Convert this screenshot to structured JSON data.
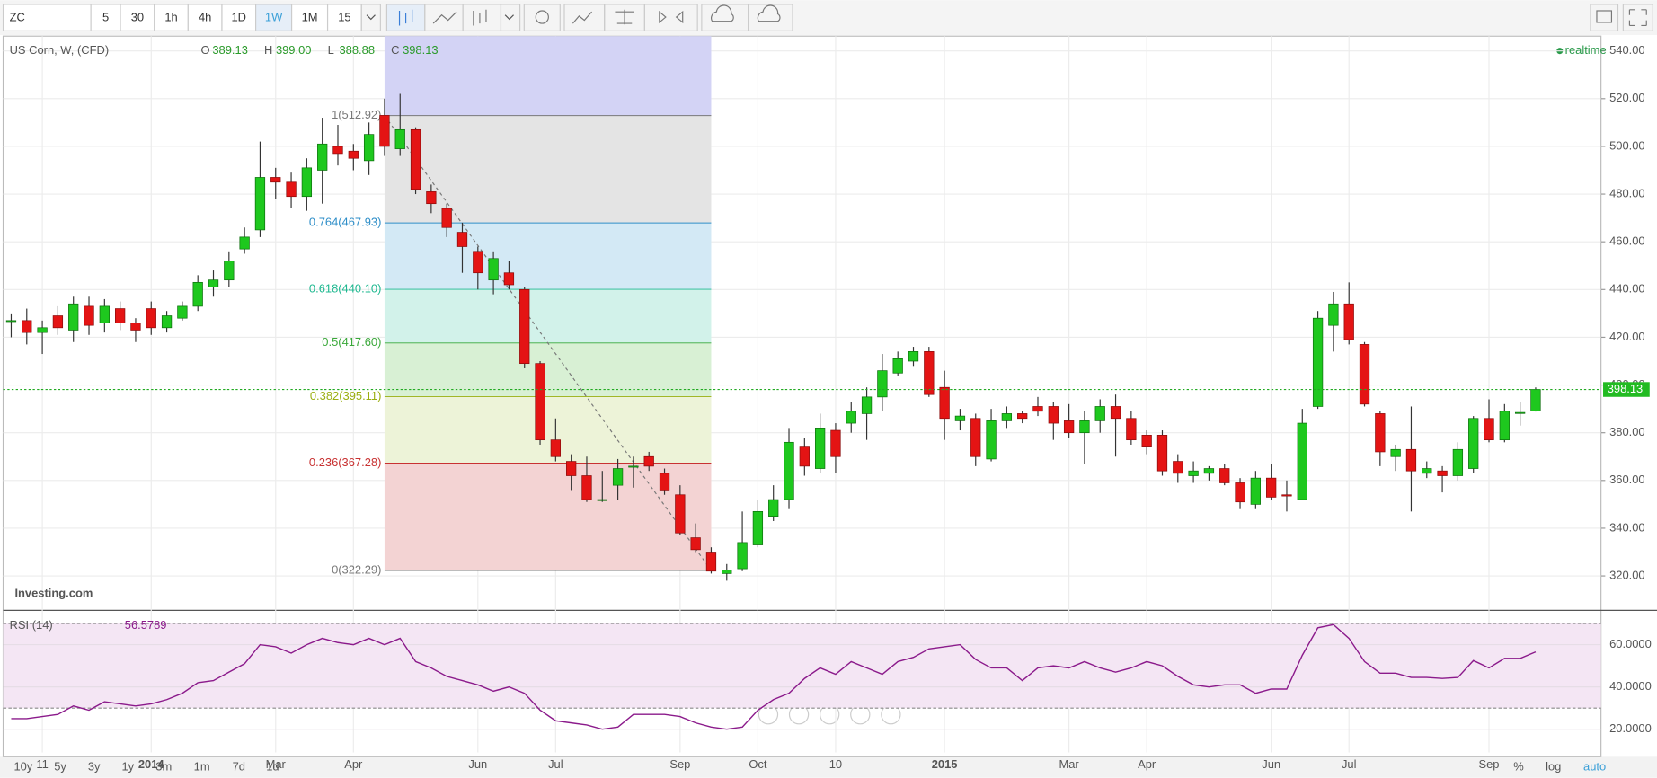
{
  "toolbar": {
    "symbol": "ZC",
    "intervals": [
      "5",
      "30",
      "1h",
      "4h",
      "1D",
      "1W",
      "1M",
      "15"
    ],
    "active": "1W"
  },
  "header": {
    "ohlc": [
      {
        "key": "O",
        "value": "389.13"
      },
      {
        "key": "H",
        "value": "399.00"
      },
      {
        "key": "L",
        "value": "388.88"
      },
      {
        "key": "C",
        "value": "398.13"
      }
    ],
    "status": "realtime",
    "watermark": "Investing.com"
  },
  "chart_data": [
    {
      "type": "candlestick",
      "title": "US Corn, W, (CFD)",
      "categories": [
        null,
        null,
        "11",
        null,
        null,
        null,
        null,
        null,
        null,
        "2014",
        null,
        null,
        null,
        null,
        null,
        null,
        null,
        "Mar",
        null,
        null,
        null,
        null,
        "Apr",
        null,
        null,
        null,
        null,
        null,
        null,
        null,
        "Jun",
        null,
        null,
        null,
        null,
        "Jul",
        null,
        null,
        null,
        null,
        null,
        null,
        null,
        "Sep",
        null,
        null,
        null,
        null,
        "Oct",
        null,
        null,
        null,
        null,
        "10",
        null,
        null,
        null,
        null,
        null,
        null,
        "2015",
        null,
        null,
        null,
        null,
        null,
        null,
        null,
        "Mar",
        null,
        null,
        null,
        null,
        "Apr",
        null,
        null,
        null,
        null,
        null,
        null,
        null,
        "Jun",
        null,
        null,
        null,
        null,
        "Jul",
        null,
        null,
        null,
        null,
        null,
        null,
        null,
        null,
        "Sep",
        null,
        null,
        null
      ],
      "open": [
        427,
        427,
        422,
        429,
        423,
        433,
        426,
        432,
        426,
        432,
        424,
        428,
        433,
        441,
        444,
        457,
        465,
        487,
        485,
        479,
        490,
        500,
        498,
        494,
        513,
        499,
        507,
        481,
        474,
        464,
        456,
        444,
        447,
        440,
        409,
        377,
        368,
        362,
        352,
        358,
        366,
        370,
        363,
        354,
        336,
        330,
        321,
        323,
        333,
        345,
        352,
        374,
        365,
        381,
        384,
        388,
        395,
        405,
        410,
        414,
        399,
        385,
        386,
        369,
        385,
        388,
        391,
        391,
        385,
        380,
        385,
        391,
        386,
        379,
        379,
        368,
        362,
        363,
        365,
        359,
        350,
        361,
        354,
        352,
        391,
        425,
        434,
        417,
        388,
        370,
        373,
        363,
        364,
        362,
        365,
        386,
        377,
        388.5,
        389.13
      ],
      "high": [
        430,
        432,
        427,
        433,
        437,
        437,
        436,
        435,
        428,
        435,
        431,
        435,
        446,
        448,
        456,
        466,
        502,
        491,
        489,
        495,
        512,
        509,
        501,
        510,
        520,
        522,
        508,
        484,
        476,
        468,
        458,
        456,
        452,
        441,
        410,
        386,
        371,
        370,
        364,
        369,
        370,
        372,
        365,
        358,
        342,
        332,
        325,
        347,
        352,
        358,
        382,
        378,
        388,
        384,
        393,
        399,
        413,
        414,
        416,
        416,
        406,
        390,
        388,
        390,
        391,
        389,
        395,
        393,
        392,
        389,
        394,
        396,
        389,
        381,
        381,
        371,
        368,
        366,
        367,
        361,
        364,
        367,
        360,
        390,
        431,
        439,
        443,
        418,
        389,
        375,
        391,
        368,
        366,
        376,
        387,
        394,
        392,
        393,
        399
      ],
      "low": [
        420,
        417,
        413,
        421,
        418,
        421,
        422,
        423,
        418,
        421,
        422,
        427,
        431,
        437,
        441,
        455,
        462,
        478,
        474,
        473,
        476,
        492,
        490,
        488,
        496,
        496,
        480,
        472,
        462,
        447,
        440,
        438,
        440,
        407,
        375,
        368,
        356,
        351,
        351,
        352,
        357,
        364,
        354,
        337,
        330,
        321,
        318,
        322,
        332,
        343,
        348,
        362,
        363,
        363,
        380,
        377,
        389,
        404,
        408,
        395,
        377,
        381,
        366,
        368,
        382,
        384,
        387,
        377,
        378,
        367,
        380,
        370,
        375,
        371,
        362,
        359,
        359,
        360,
        358,
        348,
        348,
        352,
        347,
        352,
        390,
        414,
        417,
        391,
        366,
        364,
        347,
        361,
        355,
        360,
        363,
        376,
        376,
        383,
        388.88
      ],
      "close": [
        427,
        422,
        424,
        424,
        434,
        425,
        433,
        426,
        423,
        424,
        429,
        433,
        443,
        444,
        452,
        462,
        487,
        485,
        479,
        491,
        501,
        497,
        495,
        505,
        500,
        507,
        482,
        476,
        466,
        458,
        447,
        453,
        442,
        409,
        377,
        370,
        362,
        352,
        352,
        365,
        366,
        366,
        356,
        338,
        331,
        322,
        322.5,
        334,
        347,
        352,
        376,
        366,
        382,
        370,
        389,
        395,
        406,
        411,
        414,
        396,
        386,
        387,
        370,
        385,
        388,
        386,
        389,
        384,
        380,
        385,
        391,
        386,
        377,
        374,
        364,
        363,
        364,
        365,
        359,
        351,
        361,
        353,
        353.5,
        384,
        428,
        434,
        419,
        392,
        372,
        373,
        364,
        365,
        362,
        373,
        386,
        377,
        389,
        388.5,
        398.13
      ],
      "up_color": "#1ec81e",
      "down_color": "#e41414",
      "ylim": [
        305.8,
        546.2
      ],
      "yticks": [
        {
          "value": 320,
          "label": "320.00"
        },
        {
          "value": 340,
          "label": "340.00"
        },
        {
          "value": 360,
          "label": "360.00"
        },
        {
          "value": 380,
          "label": "380.00"
        },
        {
          "value": 400,
          "label": "400.00"
        },
        {
          "value": 420,
          "label": "420.00"
        },
        {
          "value": 440,
          "label": "440.00"
        },
        {
          "value": 460,
          "label": "460.00"
        },
        {
          "value": 480,
          "label": "480.00"
        },
        {
          "value": 500,
          "label": "500.00"
        },
        {
          "value": 520,
          "label": "520.00"
        },
        {
          "value": 540,
          "label": "540.00"
        }
      ],
      "grid": true,
      "fibonacci": {
        "top_fill": "#d3d3f5",
        "levels": [
          {
            "label": "1(512.92)",
            "value": 512.92,
            "color": "#787878",
            "fill": "#e4e4e4"
          },
          {
            "label": "0.764(467.93)",
            "value": 467.93,
            "color": "#2e8ec8",
            "fill": "#d3e9f5"
          },
          {
            "label": "0.618(440.10)",
            "value": 440.1,
            "color": "#1fb890",
            "fill": "#d2f2ea"
          },
          {
            "label": "0.5(417.60)",
            "value": 417.6,
            "color": "#3aa83a",
            "fill": "#d8f0d4"
          },
          {
            "label": "0.382(395.11)",
            "value": 395.11,
            "color": "#9aae10",
            "fill": "#edf3d8"
          },
          {
            "label": "0.236(367.28)",
            "value": 367.28,
            "color": "#c83232",
            "fill": "#f3d3d3"
          },
          {
            "label": "0(322.29)",
            "value": 322.29,
            "color": "#787878",
            "fill": null
          }
        ]
      }
    },
    {
      "type": "line",
      "title": "RSI (14)",
      "color": "#8b1a8b",
      "fill": "#f4e6f4",
      "values": [
        25,
        25,
        26,
        27,
        31,
        29,
        33,
        32,
        31,
        32,
        34,
        37,
        42,
        43,
        47,
        51,
        60,
        59,
        56,
        60,
        63,
        61,
        60,
        63,
        60,
        63,
        52,
        49,
        45,
        43,
        41,
        38,
        40,
        37,
        29,
        24,
        23,
        22,
        20,
        21,
        27,
        27,
        27,
        26,
        23,
        21,
        20,
        21,
        29,
        34,
        37,
        44,
        49,
        46,
        52,
        49,
        46,
        52,
        54,
        58,
        59,
        60,
        53,
        49,
        49,
        43,
        49,
        50,
        49,
        52,
        49,
        47,
        49,
        52,
        50,
        45,
        41,
        40,
        41,
        41,
        37,
        39,
        39,
        55,
        68,
        69.5,
        63,
        52,
        46.5,
        46.5,
        44.5,
        44.5,
        44,
        44.5,
        52.5,
        49,
        53.5,
        53.5,
        56.5789
      ],
      "ylim": [
        9,
        76
      ],
      "levels": [
        70,
        30
      ],
      "yticks": [
        {
          "value": 20,
          "label": "20.0000"
        },
        {
          "value": 40,
          "label": "40.0000"
        },
        {
          "value": 60,
          "label": "60.0000"
        }
      ]
    }
  ],
  "range_bar": {
    "ranges": [
      "10y",
      "5y",
      "3y",
      "1y",
      "3m",
      "1m",
      "7d",
      "1d"
    ],
    "options": [
      "%",
      "log",
      "auto"
    ]
  }
}
